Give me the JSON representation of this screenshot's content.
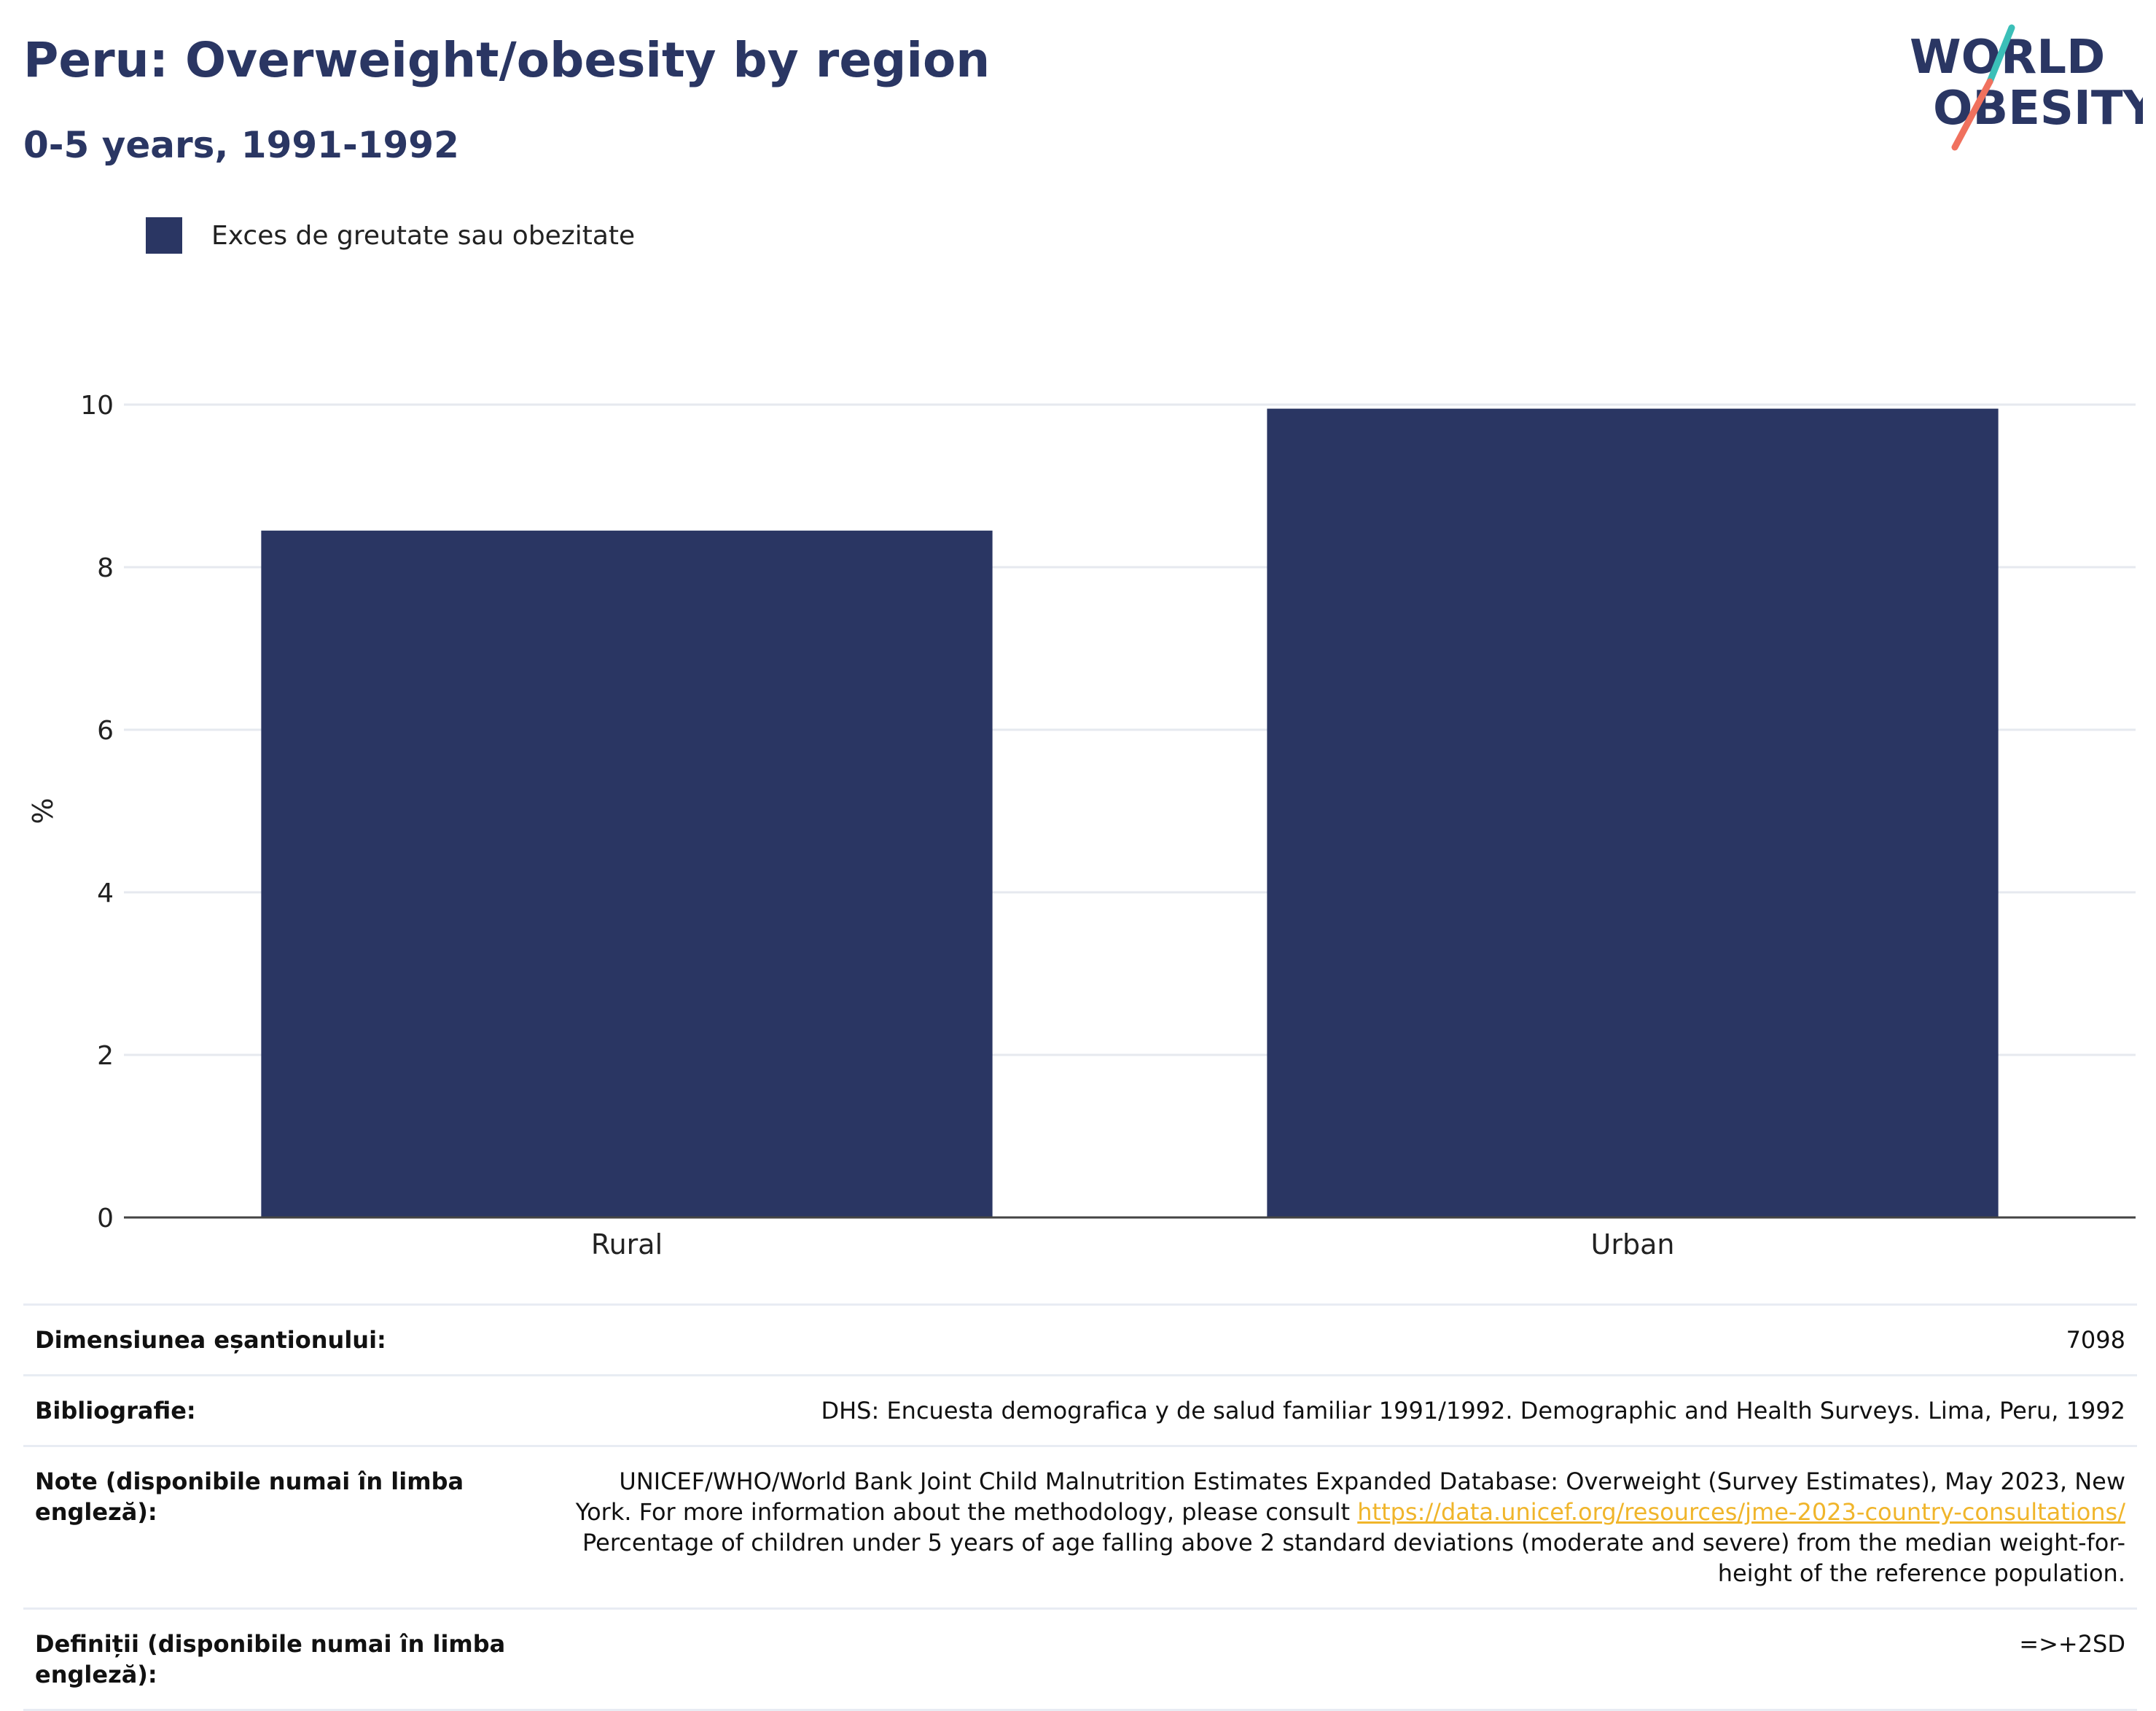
{
  "header": {
    "title": "Peru: Overweight/obesity by region",
    "subtitle": "0-5 years, 1991-1992"
  },
  "logo": {
    "line1": "WORLD",
    "line2": "OBESITY",
    "colors": {
      "text": "#2a3663",
      "slash_top": "#3bbfb8",
      "slash_bottom": "#f0715e"
    }
  },
  "legend": {
    "label": "Exces de greutate sau obezitate",
    "color": "#2a3663"
  },
  "chart_data": {
    "type": "bar",
    "categories": [
      "Rural",
      "Urban"
    ],
    "series": [
      {
        "name": "Exces de greutate sau obezitate",
        "values": [
          8.45,
          9.95
        ],
        "color": "#2a3663"
      }
    ],
    "ylabel": "%",
    "ylim": [
      0,
      10
    ],
    "yticks": [
      0,
      2,
      4,
      6,
      8,
      10
    ],
    "grid": true,
    "legend_position": "top-left"
  },
  "info": {
    "sample_label": "Dimensiunea eșantionului:",
    "sample_value": "7098",
    "bibliography_label": "Bibliografie:",
    "bibliography_value": "DHS: Encuesta demografica y de salud familiar 1991/1992. Demographic and Health Surveys. Lima, Peru, 1992",
    "notes_label": "Note (disponibile numai în limba engleză):",
    "notes_text_1": "UNICEF/WHO/World Bank Joint Child Malnutrition Estimates Expanded Database: Overweight (Survey Estimates), May 2023, New York. For more information about the methodology, please consult",
    "notes_link": "https://data.unicef.org/resources/jme-2023-country-consultations/",
    "notes_text_2": "Percentage of children under 5 years of age falling above 2 standard deviations (moderate and severe) from the median weight-for-height of the reference population.",
    "definitions_label": "Definiții (disponibile numai în limba engleză):",
    "definitions_value": "=>+2SD"
  }
}
